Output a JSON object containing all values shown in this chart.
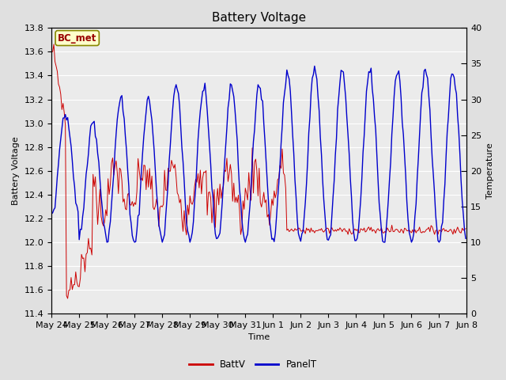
{
  "title": "Battery Voltage",
  "xlabel": "Time",
  "ylabel_left": "Battery Voltage",
  "ylabel_right": "Temperature",
  "annotation_text": "BC_met",
  "annotation_box_color": "#ffffcc",
  "annotation_text_color": "#990000",
  "annotation_border_color": "#888800",
  "legend_labels": [
    "BattV",
    "PanelT"
  ],
  "batt_color": "#cc0000",
  "panel_color": "#0000cc",
  "ylim_left": [
    11.4,
    13.8
  ],
  "ylim_right": [
    0,
    40
  ],
  "yticks_left": [
    11.4,
    11.6,
    11.8,
    12.0,
    12.2,
    12.4,
    12.6,
    12.8,
    13.0,
    13.2,
    13.4,
    13.6,
    13.8
  ],
  "yticks_right": [
    0,
    5,
    10,
    15,
    20,
    25,
    30,
    35,
    40
  ],
  "background_color": "#e0e0e0",
  "plot_bg_color": "#ebebeb",
  "grid_color": "#ffffff",
  "tick_label_size": 8,
  "title_fontsize": 11,
  "axis_label_fontsize": 8,
  "figsize": [
    6.4,
    4.8
  ],
  "dpi": 100
}
